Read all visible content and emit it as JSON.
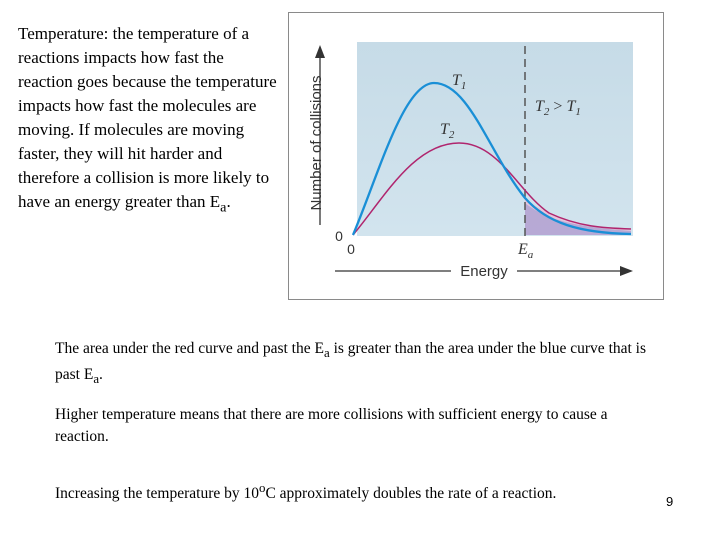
{
  "intro": {
    "text": "Temperature: the temperature of a reactions impacts how fast the reaction goes because the temperature impacts how fast the molecules are moving.  If molecules are moving faster, they will hit harder and therefore a collision is more likely to have an energy greater than E",
    "subscript": "a",
    "tail": "."
  },
  "figure": {
    "y_axis_label": "Number of collisions",
    "x_axis_label": "Energy",
    "origin_y": "0",
    "origin_x": "0",
    "curve_t1": {
      "label": "T",
      "sub": "1",
      "color": "#1a8fd6"
    },
    "curve_t2": {
      "label": "T",
      "sub": "2",
      "color": "#b0256e"
    },
    "relation": {
      "a": "T",
      "a_sub": "2",
      "op": " > ",
      "b": "T",
      "b_sub": "1"
    },
    "threshold": {
      "label": "E",
      "sub": "a"
    },
    "plot_background": "#c9dde8"
  },
  "notes": [
    {
      "pre": "The area under the red curve and past the E",
      "sub1": "a",
      "mid": " is greater than the area under the blue curve that is past E",
      "sub2": "a",
      "post": "."
    },
    {
      "text": "Higher temperature means that there are more collisions with sufficient energy to cause a reaction."
    },
    {
      "pre": "Increasing the temperature by 10",
      "sup": "o",
      "post": "C approximately doubles the rate of a reaction."
    }
  ],
  "slide_number": "9"
}
